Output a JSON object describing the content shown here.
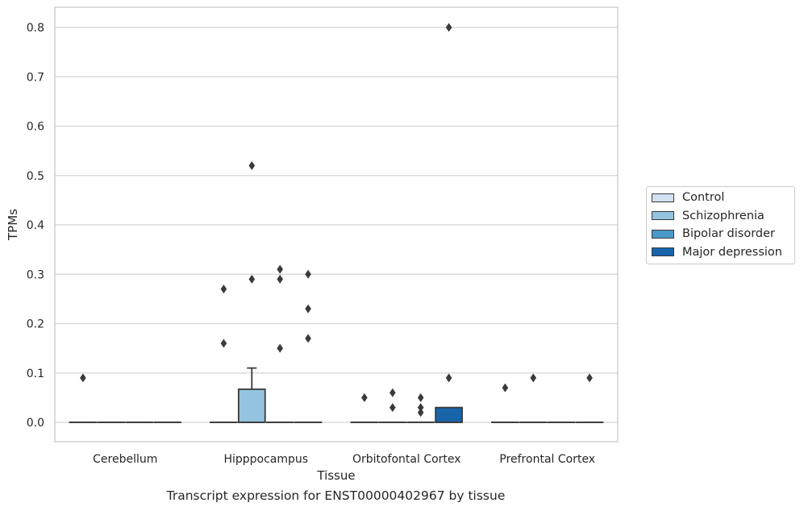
{
  "chart_data": {
    "type": "box",
    "title": "",
    "caption": "Transcript expression for ENST00000402967 by tissue",
    "xlabel": "Tissue",
    "ylabel": "TPMs",
    "ylim": [
      -0.04,
      0.84
    ],
    "yticks": [
      "0.0",
      "0.1",
      "0.2",
      "0.3",
      "0.4",
      "0.5",
      "0.6",
      "0.7",
      "0.8"
    ],
    "grid": true,
    "legend_position": "right",
    "categories": [
      "Cerebellum",
      "Hipppocampus",
      "Orbitofontal Cortex",
      "Prefrontal Cortex"
    ],
    "series": [
      {
        "name": "Control",
        "color": "#d0e1f2",
        "boxes": [
          {
            "category": "Cerebellum",
            "q1": 0,
            "median": 0,
            "q3": 0,
            "whisker_low": 0,
            "whisker_high": 0,
            "outliers": [
              0.09
            ]
          },
          {
            "category": "Hipppocampus",
            "q1": 0,
            "median": 0,
            "q3": 0,
            "whisker_low": 0,
            "whisker_high": 0,
            "outliers": [
              0.27,
              0.16
            ]
          },
          {
            "category": "Orbitofontal Cortex",
            "q1": 0,
            "median": 0,
            "q3": 0,
            "whisker_low": 0,
            "whisker_high": 0,
            "outliers": [
              0.05
            ]
          },
          {
            "category": "Prefrontal Cortex",
            "q1": 0,
            "median": 0,
            "q3": 0,
            "whisker_low": 0,
            "whisker_high": 0,
            "outliers": [
              0.07
            ]
          }
        ]
      },
      {
        "name": "Schizophrenia",
        "color": "#94c4df",
        "boxes": [
          {
            "category": "Cerebellum",
            "q1": 0,
            "median": 0,
            "q3": 0,
            "whisker_low": 0,
            "whisker_high": 0,
            "outliers": []
          },
          {
            "category": "Hipppocampus",
            "q1": 0,
            "median": 0,
            "q3": 0.067,
            "whisker_low": 0,
            "whisker_high": 0.11,
            "outliers": [
              0.52,
              0.29
            ]
          },
          {
            "category": "Orbitofontal Cortex",
            "q1": 0,
            "median": 0,
            "q3": 0,
            "whisker_low": 0,
            "whisker_high": 0,
            "outliers": [
              0.06,
              0.03
            ]
          },
          {
            "category": "Prefrontal Cortex",
            "q1": 0,
            "median": 0,
            "q3": 0,
            "whisker_low": 0,
            "whisker_high": 0,
            "outliers": [
              0.09
            ]
          }
        ]
      },
      {
        "name": "Bipolar disorder",
        "color": "#4a98c9",
        "boxes": [
          {
            "category": "Cerebellum",
            "q1": 0,
            "median": 0,
            "q3": 0,
            "whisker_low": 0,
            "whisker_high": 0,
            "outliers": []
          },
          {
            "category": "Hipppocampus",
            "q1": 0,
            "median": 0,
            "q3": 0,
            "whisker_low": 0,
            "whisker_high": 0,
            "outliers": [
              0.31,
              0.29,
              0.15
            ]
          },
          {
            "category": "Orbitofontal Cortex",
            "q1": 0,
            "median": 0,
            "q3": 0,
            "whisker_low": 0,
            "whisker_high": 0,
            "outliers": [
              0.05,
              0.03,
              0.02
            ]
          },
          {
            "category": "Prefrontal Cortex",
            "q1": 0,
            "median": 0,
            "q3": 0,
            "whisker_low": 0,
            "whisker_high": 0,
            "outliers": []
          }
        ]
      },
      {
        "name": "Major depression",
        "color": "#1764ab",
        "boxes": [
          {
            "category": "Cerebellum",
            "q1": 0,
            "median": 0,
            "q3": 0,
            "whisker_low": 0,
            "whisker_high": 0,
            "outliers": []
          },
          {
            "category": "Hipppocampus",
            "q1": 0,
            "median": 0,
            "q3": 0,
            "whisker_low": 0,
            "whisker_high": 0,
            "outliers": [
              0.3,
              0.23,
              0.17
            ]
          },
          {
            "category": "Orbitofontal Cortex",
            "q1": 0,
            "median": 0,
            "q3": 0.03,
            "whisker_low": 0,
            "whisker_high": 0.03,
            "outliers": [
              0.8,
              0.09
            ]
          },
          {
            "category": "Prefrontal Cortex",
            "q1": 0,
            "median": 0,
            "q3": 0,
            "whisker_low": 0,
            "whisker_high": 0,
            "outliers": [
              0.09
            ]
          }
        ]
      }
    ]
  }
}
